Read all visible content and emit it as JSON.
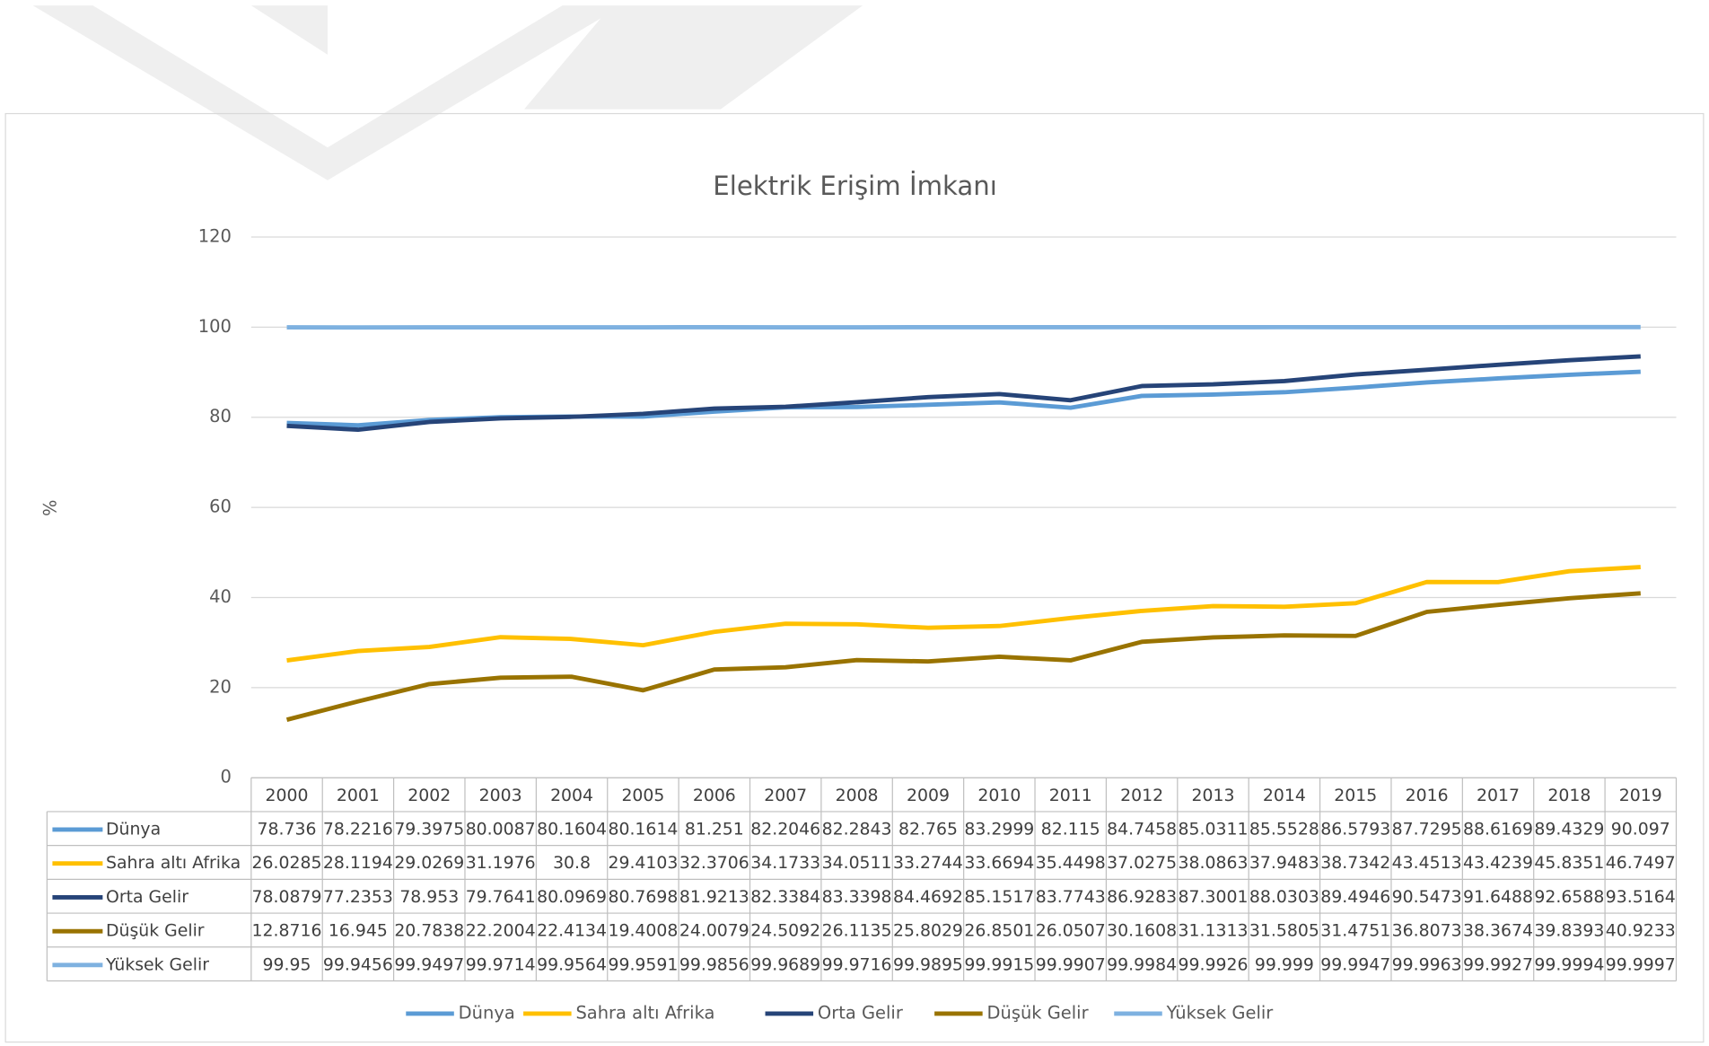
{
  "chart_data": {
    "type": "line",
    "title": "Elektrik Erişim İmkanı",
    "y_label": "%",
    "categories": [
      "2000",
      "2001",
      "2002",
      "2003",
      "2004",
      "2005",
      "2006",
      "2007",
      "2008",
      "2009",
      "2010",
      "2011",
      "2012",
      "2013",
      "2014",
      "2015",
      "2016",
      "2017",
      "2018",
      "2019"
    ],
    "ylim": [
      0,
      120
    ],
    "yticks": [
      0,
      20,
      40,
      60,
      80,
      100,
      120
    ],
    "grid": true,
    "legend": "bottom",
    "data_table": true,
    "series": [
      {
        "name": "Dünya",
        "color": "#5b9bd5",
        "values": [
          78.736,
          78.2216,
          79.3975,
          80.0087,
          80.1604,
          80.1614,
          81.251,
          82.2046,
          82.2843,
          82.765,
          83.2999,
          82.115,
          84.7458,
          85.0311,
          85.5528,
          86.5793,
          87.7295,
          88.6169,
          89.4329,
          90.097
        ]
      },
      {
        "name": "Sahra altı Afrika",
        "color": "#ffc000",
        "values": [
          26.0285,
          28.1194,
          29.0269,
          31.1976,
          30.8,
          29.4103,
          32.3706,
          34.1733,
          34.0511,
          33.2744,
          33.6694,
          35.4498,
          37.0275,
          38.0863,
          37.9483,
          38.7342,
          43.4513,
          43.4239,
          45.8351,
          46.7497
        ]
      },
      {
        "name": "Orta Gelir",
        "color": "#264478",
        "values": [
          78.0879,
          77.2353,
          78.953,
          79.7641,
          80.0969,
          80.7698,
          81.9213,
          82.3384,
          83.3398,
          84.4692,
          85.1517,
          83.7743,
          86.9283,
          87.3001,
          88.0303,
          89.4946,
          90.5473,
          91.6488,
          92.6588,
          93.5164
        ]
      },
      {
        "name": "Düşük Gelir",
        "color": "#997300",
        "values": [
          12.8716,
          16.945,
          20.7838,
          22.2004,
          22.4134,
          19.4008,
          24.0079,
          24.5092,
          26.1135,
          25.8029,
          26.8501,
          26.0507,
          30.1608,
          31.1313,
          31.5805,
          31.4751,
          36.8073,
          38.3674,
          39.8393,
          40.9233
        ]
      },
      {
        "name": "Yüksek Gelir",
        "color": "#7eb1e0",
        "values": [
          99.95,
          99.9456,
          99.9497,
          99.9714,
          99.9564,
          99.9591,
          99.9856,
          99.9689,
          99.9716,
          99.9895,
          99.9915,
          99.9907,
          99.9984,
          99.9926,
          99.999,
          99.9947,
          99.9963,
          99.9927,
          99.9994,
          99.9997
        ]
      }
    ]
  }
}
